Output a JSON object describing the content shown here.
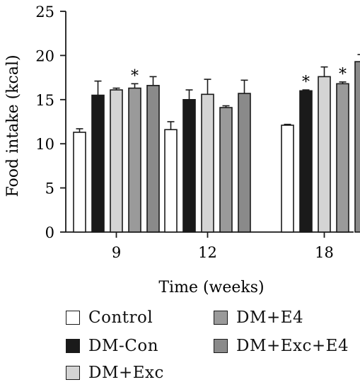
{
  "chart_data": {
    "type": "bar",
    "ylabel": "Food intake (kcal)",
    "xlabel": "Time (weeks)",
    "ylim": [
      0,
      25
    ],
    "yticks": [
      0,
      5,
      10,
      15,
      20,
      25
    ],
    "categories": [
      "9",
      "12",
      "18"
    ],
    "series": [
      {
        "name": "Control",
        "color": "#ffffff",
        "values": [
          11.3,
          11.6,
          12.1
        ],
        "errors": [
          0.4,
          0.9,
          0.1
        ]
      },
      {
        "name": "DM-Con",
        "color": "#1a1a1a",
        "values": [
          15.5,
          15.0,
          16.0
        ],
        "errors": [
          1.6,
          1.1,
          0.1
        ]
      },
      {
        "name": "DM+Exc",
        "color": "#d4d4d4",
        "values": [
          16.1,
          15.6,
          17.6
        ],
        "errors": [
          0.2,
          1.7,
          1.1
        ]
      },
      {
        "name": "DM+E4",
        "color": "#9a9a9a",
        "values": [
          16.3,
          14.1,
          16.8
        ],
        "errors": [
          0.5,
          0.2,
          0.2
        ]
      },
      {
        "name": "DM+Exc+E4",
        "color": "#8a8a8a",
        "values": [
          16.6,
          15.7,
          19.3
        ],
        "errors": [
          1.0,
          1.5,
          0.8
        ]
      }
    ],
    "significance": [
      {
        "category": "9",
        "series": "DM+E4",
        "label": "*"
      },
      {
        "category": "18",
        "series": "DM-Con",
        "label": "*"
      },
      {
        "category": "18",
        "series": "DM+E4",
        "label": "*"
      }
    ],
    "grid": false,
    "legend_position": "bottom"
  },
  "legend": {
    "items": [
      {
        "label": "Control",
        "color": "#ffffff"
      },
      {
        "label": "DM-Con",
        "color": "#1a1a1a"
      },
      {
        "label": "DM+Exc",
        "color": "#d4d4d4"
      },
      {
        "label": "DM+E4",
        "color": "#9a9a9a"
      },
      {
        "label": "DM+Exc+E4",
        "color": "#8a8a8a"
      }
    ]
  }
}
